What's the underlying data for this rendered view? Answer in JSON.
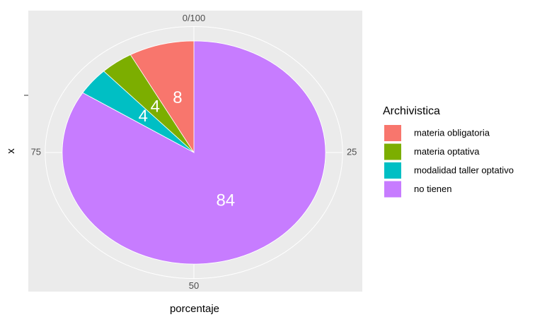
{
  "chart_data": {
    "type": "pie",
    "x_label": "porcentaje",
    "y_label": "x",
    "legend_title": "Archivistica",
    "categories": [
      "materia obligatoria",
      "materia optativa",
      "modalidad taller optativo",
      "no tienen"
    ],
    "values": [
      8,
      4,
      4,
      84
    ],
    "colors": [
      "#f8766d",
      "#7cae00",
      "#00bfc4",
      "#c77cff"
    ],
    "ylim": [
      0,
      100
    ],
    "yticks": [
      {
        "value": 0,
        "label": "0/100"
      },
      25,
      50,
      75
    ],
    "grid": true,
    "legend": "right"
  }
}
